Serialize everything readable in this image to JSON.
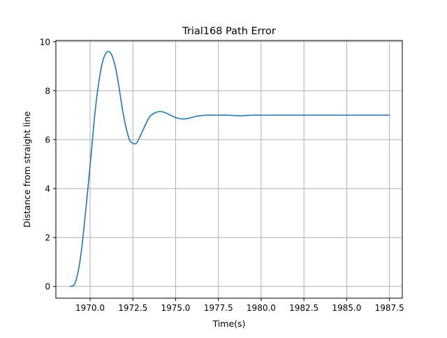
{
  "chart_data": {
    "type": "line",
    "title": "Trial168 Path Error",
    "xlabel": "Time(s)",
    "ylabel": "Distance from straight line",
    "xlim": [
      1968.0,
      1988.25
    ],
    "ylim": [
      -0.48,
      10.05
    ],
    "x_ticks": [
      1970.0,
      1972.5,
      1975.0,
      1977.5,
      1980.0,
      1982.5,
      1985.0,
      1987.5
    ],
    "x_tick_labels": [
      "1970.0",
      "1972.5",
      "1975.0",
      "1977.5",
      "1980.0",
      "1982.5",
      "1985.0",
      "1987.5"
    ],
    "y_ticks": [
      0,
      2,
      4,
      6,
      8,
      10
    ],
    "y_tick_labels": [
      "0",
      "2",
      "4",
      "6",
      "8",
      "10"
    ],
    "grid": true,
    "colors": {
      "line": "#1f77b4",
      "grid": "#b0b0b0",
      "axes": "#000000"
    },
    "series": [
      {
        "x": [
          1968.85,
          1969.1,
          1969.3,
          1969.5,
          1969.7,
          1969.9,
          1970.1,
          1970.3,
          1970.5,
          1970.7,
          1970.9,
          1971.1,
          1971.3,
          1971.5,
          1971.7,
          1971.9,
          1972.1,
          1972.3,
          1972.5,
          1972.7,
          1972.9,
          1973.1,
          1973.3,
          1973.5,
          1973.8,
          1974.1,
          1974.4,
          1974.7,
          1975.0,
          1975.3,
          1975.6,
          1975.9,
          1976.2,
          1976.5,
          1976.8,
          1977.1,
          1977.5,
          1978.0,
          1978.5,
          1979.0,
          1979.5,
          1980.0,
          1980.5,
          1981.0,
          1982.0,
          1983.0,
          1984.0,
          1985.0,
          1986.0,
          1987.0,
          1987.5
        ],
        "y": [
          0.0,
          0.1,
          0.6,
          1.5,
          2.8,
          4.2,
          5.7,
          7.2,
          8.3,
          9.1,
          9.5,
          9.6,
          9.4,
          8.9,
          8.1,
          7.2,
          6.5,
          6.0,
          5.85,
          5.85,
          6.1,
          6.4,
          6.7,
          6.95,
          7.1,
          7.15,
          7.1,
          7.0,
          6.9,
          6.85,
          6.85,
          6.9,
          6.95,
          6.98,
          7.0,
          7.0,
          7.0,
          7.0,
          6.98,
          6.98,
          7.0,
          7.0,
          7.0,
          7.0,
          7.0,
          7.0,
          7.0,
          7.0,
          7.0,
          7.0,
          7.0
        ]
      }
    ]
  }
}
